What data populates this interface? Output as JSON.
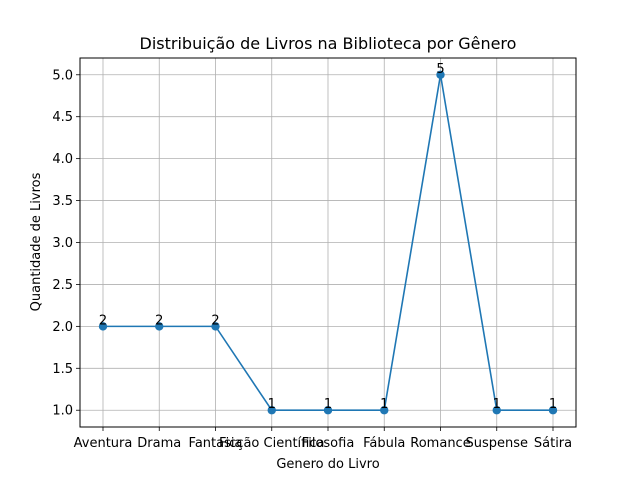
{
  "chart_data": {
    "type": "line",
    "title": "Distribuição de Livros na Biblioteca por Gênero",
    "xlabel": "Genero do Livro",
    "ylabel": "Quantidade de Livros",
    "categories": [
      "Aventura",
      "Drama",
      "Fantasia",
      "Ficção Científica",
      "Filosofia",
      "Fábula",
      "Romance",
      "Suspense",
      "Sátira"
    ],
    "values": [
      2,
      2,
      2,
      1,
      1,
      1,
      5,
      1,
      1
    ],
    "data_labels": [
      "2",
      "2",
      "2",
      "1",
      "1",
      "1",
      "5",
      "1",
      "1"
    ],
    "ylim": [
      0.8,
      5.2
    ],
    "yticks": [
      1.0,
      1.5,
      2.0,
      2.5,
      3.0,
      3.5,
      4.0,
      4.5,
      5.0
    ],
    "ytick_labels": [
      "1.0",
      "1.5",
      "2.0",
      "2.5",
      "3.0",
      "3.5",
      "4.0",
      "4.5",
      "5.0"
    ],
    "grid": true,
    "line_color": "#1f77b4"
  }
}
